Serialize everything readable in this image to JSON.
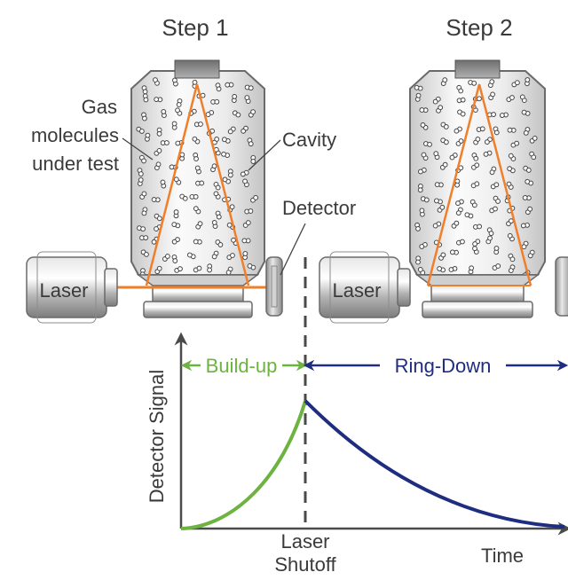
{
  "steps": {
    "step1_title": "Step 1",
    "step2_title": "Step 2"
  },
  "labels": {
    "gas_line1": "Gas",
    "gas_line2": "molecules",
    "gas_line3": "under test",
    "cavity": "Cavity",
    "detector": "Detector",
    "laser_1": "Laser",
    "laser_2": "Laser"
  },
  "graph": {
    "y_axis_label": "Detector Signal",
    "x_axis_label": "Time",
    "buildup_label": "Build-up",
    "ringdown_label": "Ring-Down",
    "shutoff_line1": "Laser",
    "shutoff_line2": "Shutoff"
  },
  "colors": {
    "beam": "#f07f2a",
    "buildup": "#6cb33f",
    "ringdown": "#1f2d80",
    "metal": "#9a9a9a",
    "text": "#3a3a3a"
  }
}
